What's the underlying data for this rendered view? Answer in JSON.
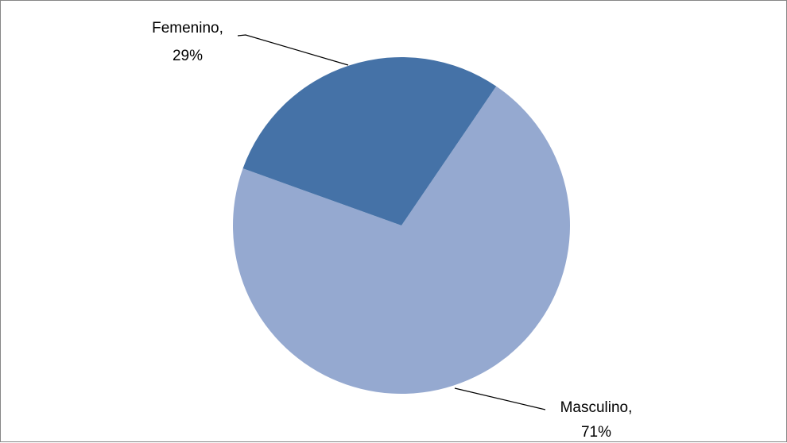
{
  "chart_data": {
    "type": "pie",
    "slices": [
      {
        "label": "Masculino",
        "value": 71,
        "value_label": "71%",
        "color": "#95a9d0"
      },
      {
        "label": "Femenino",
        "value": 29,
        "value_label": "29%",
        "color": "#4572a7"
      }
    ],
    "data_labels": "outside-with-leader-lines",
    "legend": "none",
    "title": ""
  }
}
